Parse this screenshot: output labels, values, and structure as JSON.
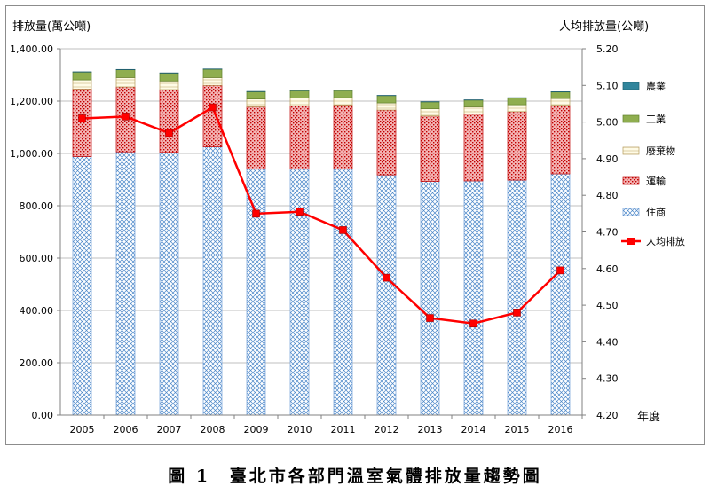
{
  "chart_data": {
    "type": "bar",
    "stacked": true,
    "left_axis_label": "排放量(萬公噸)",
    "right_axis_label": "人均排放量(公噸)",
    "x_axis_label": "年度",
    "categories": [
      "2005",
      "2006",
      "2007",
      "2008",
      "2009",
      "2010",
      "2011",
      "2012",
      "2013",
      "2014",
      "2015",
      "2016"
    ],
    "y_left": {
      "min": 0,
      "max": 1400,
      "step": 200,
      "ticks": [
        "0.00",
        "200.00",
        "400.00",
        "600.00",
        "800.00",
        "1,000.00",
        "1,200.00",
        "1,400.00"
      ]
    },
    "y_right": {
      "min": 4.2,
      "max": 5.2,
      "step": 0.1,
      "ticks": [
        "4.20",
        "4.30",
        "4.40",
        "4.50",
        "4.60",
        "4.70",
        "4.80",
        "4.90",
        "5.00",
        "5.10",
        "5.20"
      ]
    },
    "series": [
      {
        "name": "住商",
        "axis": "left",
        "color": "#9dc3e6",
        "values": [
          988,
          1006,
          1004,
          1025,
          940,
          940,
          940,
          918,
          893,
          895,
          898,
          922
        ]
      },
      {
        "name": "運輸",
        "axis": "left",
        "color": "#e06666",
        "values": [
          258,
          248,
          240,
          235,
          238,
          242,
          245,
          248,
          250,
          255,
          262,
          262
        ]
      },
      {
        "name": "廢棄物",
        "axis": "left",
        "color": "#fbf3d1",
        "values": [
          35,
          36,
          33,
          30,
          30,
          30,
          28,
          27,
          28,
          28,
          26,
          26
        ]
      },
      {
        "name": "工業",
        "axis": "left",
        "color": "#8fae4f",
        "values": [
          30,
          30,
          30,
          32,
          28,
          28,
          28,
          28,
          26,
          26,
          26,
          25
        ]
      },
      {
        "name": "農業",
        "axis": "left",
        "color": "#31859c",
        "values": [
          1,
          1,
          1,
          1,
          1,
          1,
          1,
          1,
          1,
          1,
          1,
          1
        ]
      }
    ],
    "line_series": {
      "name": "人均排放",
      "axis": "right",
      "color": "#ff0000",
      "values": [
        5.01,
        5.015,
        4.97,
        5.04,
        4.75,
        4.755,
        4.705,
        4.575,
        4.465,
        4.45,
        4.48,
        4.595
      ]
    },
    "legend_order": [
      "農業",
      "工業",
      "廢棄物",
      "運輸",
      "住商",
      "人均排放"
    ],
    "legend_position": "right",
    "grid": true
  },
  "caption": {
    "number": "圖 1",
    "text": "臺北市各部門溫室氣體排放量趨勢圖"
  }
}
